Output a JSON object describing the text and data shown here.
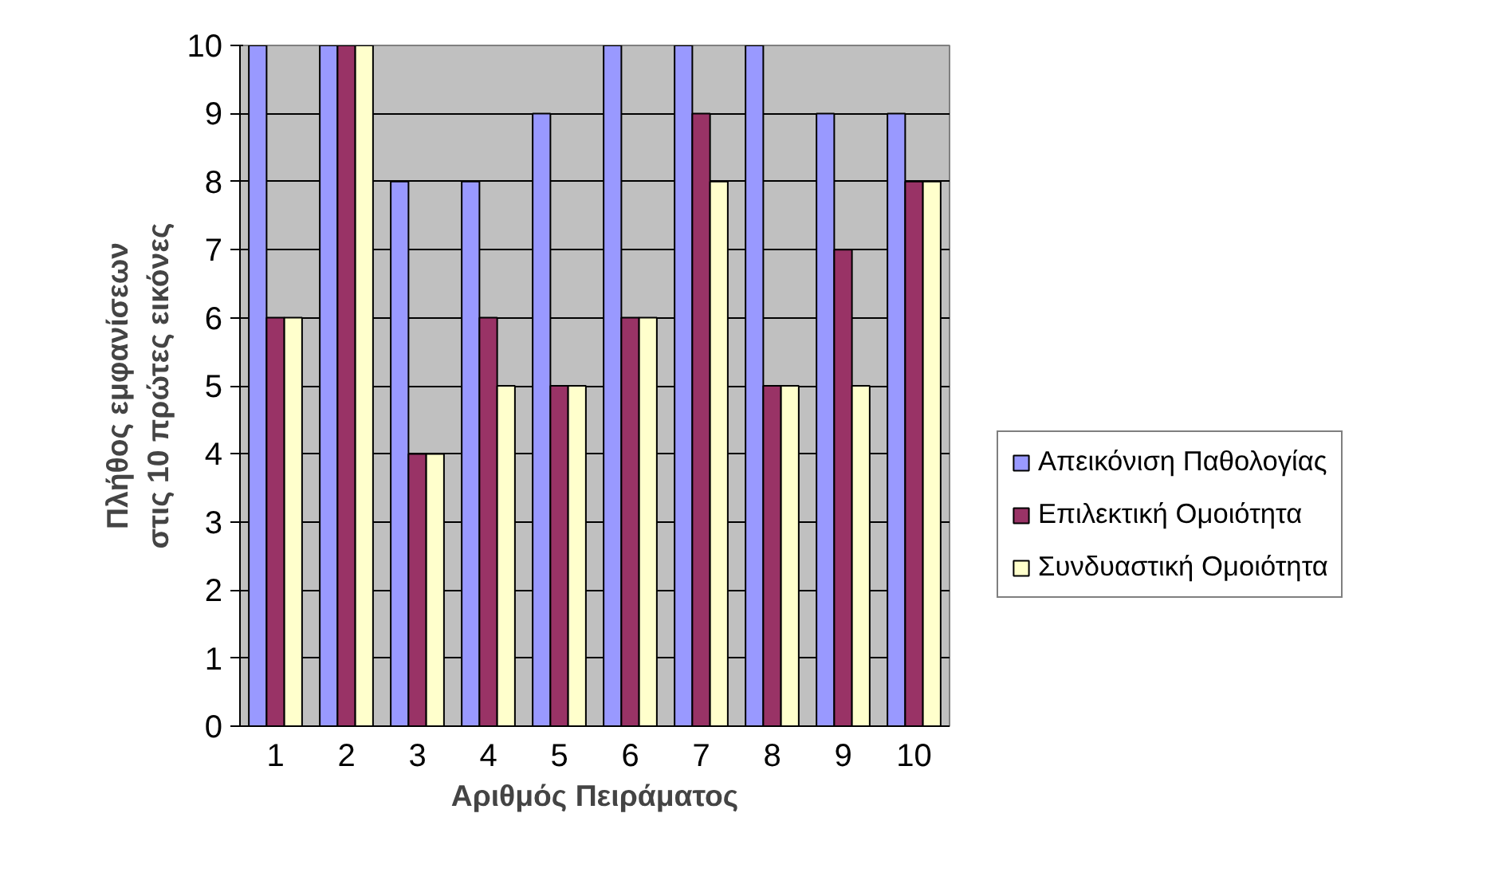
{
  "chart_data": {
    "type": "bar",
    "xlabel": "Αριθμός Πειράματος",
    "ylabel": "Πλήθος εμφανίσεων\nστις 10 πρώτες εικόνες",
    "categories": [
      "1",
      "2",
      "3",
      "4",
      "5",
      "6",
      "7",
      "8",
      "9",
      "10"
    ],
    "series": [
      {
        "name": "Απεικόνιση Παθολογίας",
        "color": "#9999ff",
        "values": [
          10,
          10,
          8,
          8,
          9,
          10,
          10,
          10,
          9,
          9
        ]
      },
      {
        "name": "Επιλεκτική Ομοιότητα",
        "color": "#993366",
        "values": [
          6,
          10,
          4,
          6,
          5,
          6,
          9,
          5,
          7,
          8
        ]
      },
      {
        "name": "Συνδυαστική Ομοιότητα",
        "color": "#ffffcc",
        "values": [
          6,
          10,
          4,
          5,
          5,
          6,
          8,
          5,
          5,
          8
        ]
      }
    ],
    "ylim": [
      0,
      10
    ],
    "yticks": [
      0,
      1,
      2,
      3,
      4,
      5,
      6,
      7,
      8,
      9,
      10
    ],
    "grid": "y",
    "legend": "right"
  }
}
